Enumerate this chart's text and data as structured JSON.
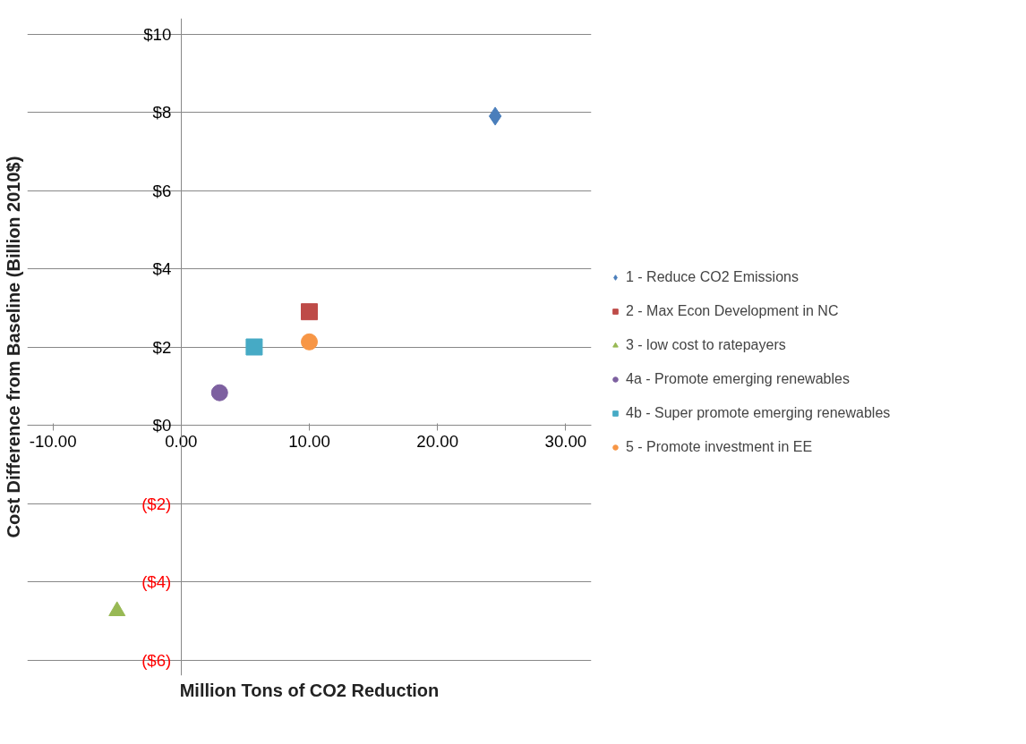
{
  "chart_data": {
    "type": "scatter",
    "xlabel": "Million Tons of CO2 Reduction",
    "ylabel": "Cost Difference from Baseline (Billion 2010$)",
    "xlim": [
      -10,
      30
    ],
    "xticks": [
      {
        "value": -10,
        "label": "-10.00"
      },
      {
        "value": 0,
        "label": "0.00"
      },
      {
        "value": 10,
        "label": "10.00"
      },
      {
        "value": 20,
        "label": "20.00"
      },
      {
        "value": 30,
        "label": "30.00"
      }
    ],
    "ylim": [
      -6,
      10
    ],
    "yticks": [
      {
        "value": -6,
        "label": "($6)"
      },
      {
        "value": -4,
        "label": "($4)"
      },
      {
        "value": -2,
        "label": "($2)"
      },
      {
        "value": 0,
        "label": "$0"
      },
      {
        "value": 2,
        "label": "$2"
      },
      {
        "value": 4,
        "label": "$4"
      },
      {
        "value": 6,
        "label": "$6"
      },
      {
        "value": 8,
        "label": "$8"
      },
      {
        "value": 10,
        "label": "$10"
      }
    ],
    "grid": "y",
    "legend": "right",
    "series": [
      {
        "name": "1 - Reduce CO2 Emissions",
        "color": "#4a7ebb",
        "marker": "diamond",
        "x": [
          24.5
        ],
        "values": [
          7.9
        ]
      },
      {
        "name": "2 - Max Econ Development in NC",
        "color": "#be4b48",
        "marker": "square",
        "x": [
          10.0
        ],
        "values": [
          2.9
        ]
      },
      {
        "name": "3 - low cost to ratepayers",
        "color": "#98b954",
        "marker": "triangle",
        "x": [
          -5.0
        ],
        "values": [
          -4.75
        ]
      },
      {
        "name": "4a - Promote emerging renewables",
        "color": "#7d60a0",
        "marker": "circle",
        "x": [
          3.0
        ],
        "values": [
          0.83
        ]
      },
      {
        "name": "4b - Super promote emerging renewables",
        "color": "#46aac5",
        "marker": "square",
        "x": [
          5.7
        ],
        "values": [
          2.0
        ]
      },
      {
        "name": "5 - Promote investment in EE",
        "color": "#f79646",
        "marker": "circle",
        "x": [
          10.0
        ],
        "values": [
          2.13
        ]
      }
    ]
  }
}
